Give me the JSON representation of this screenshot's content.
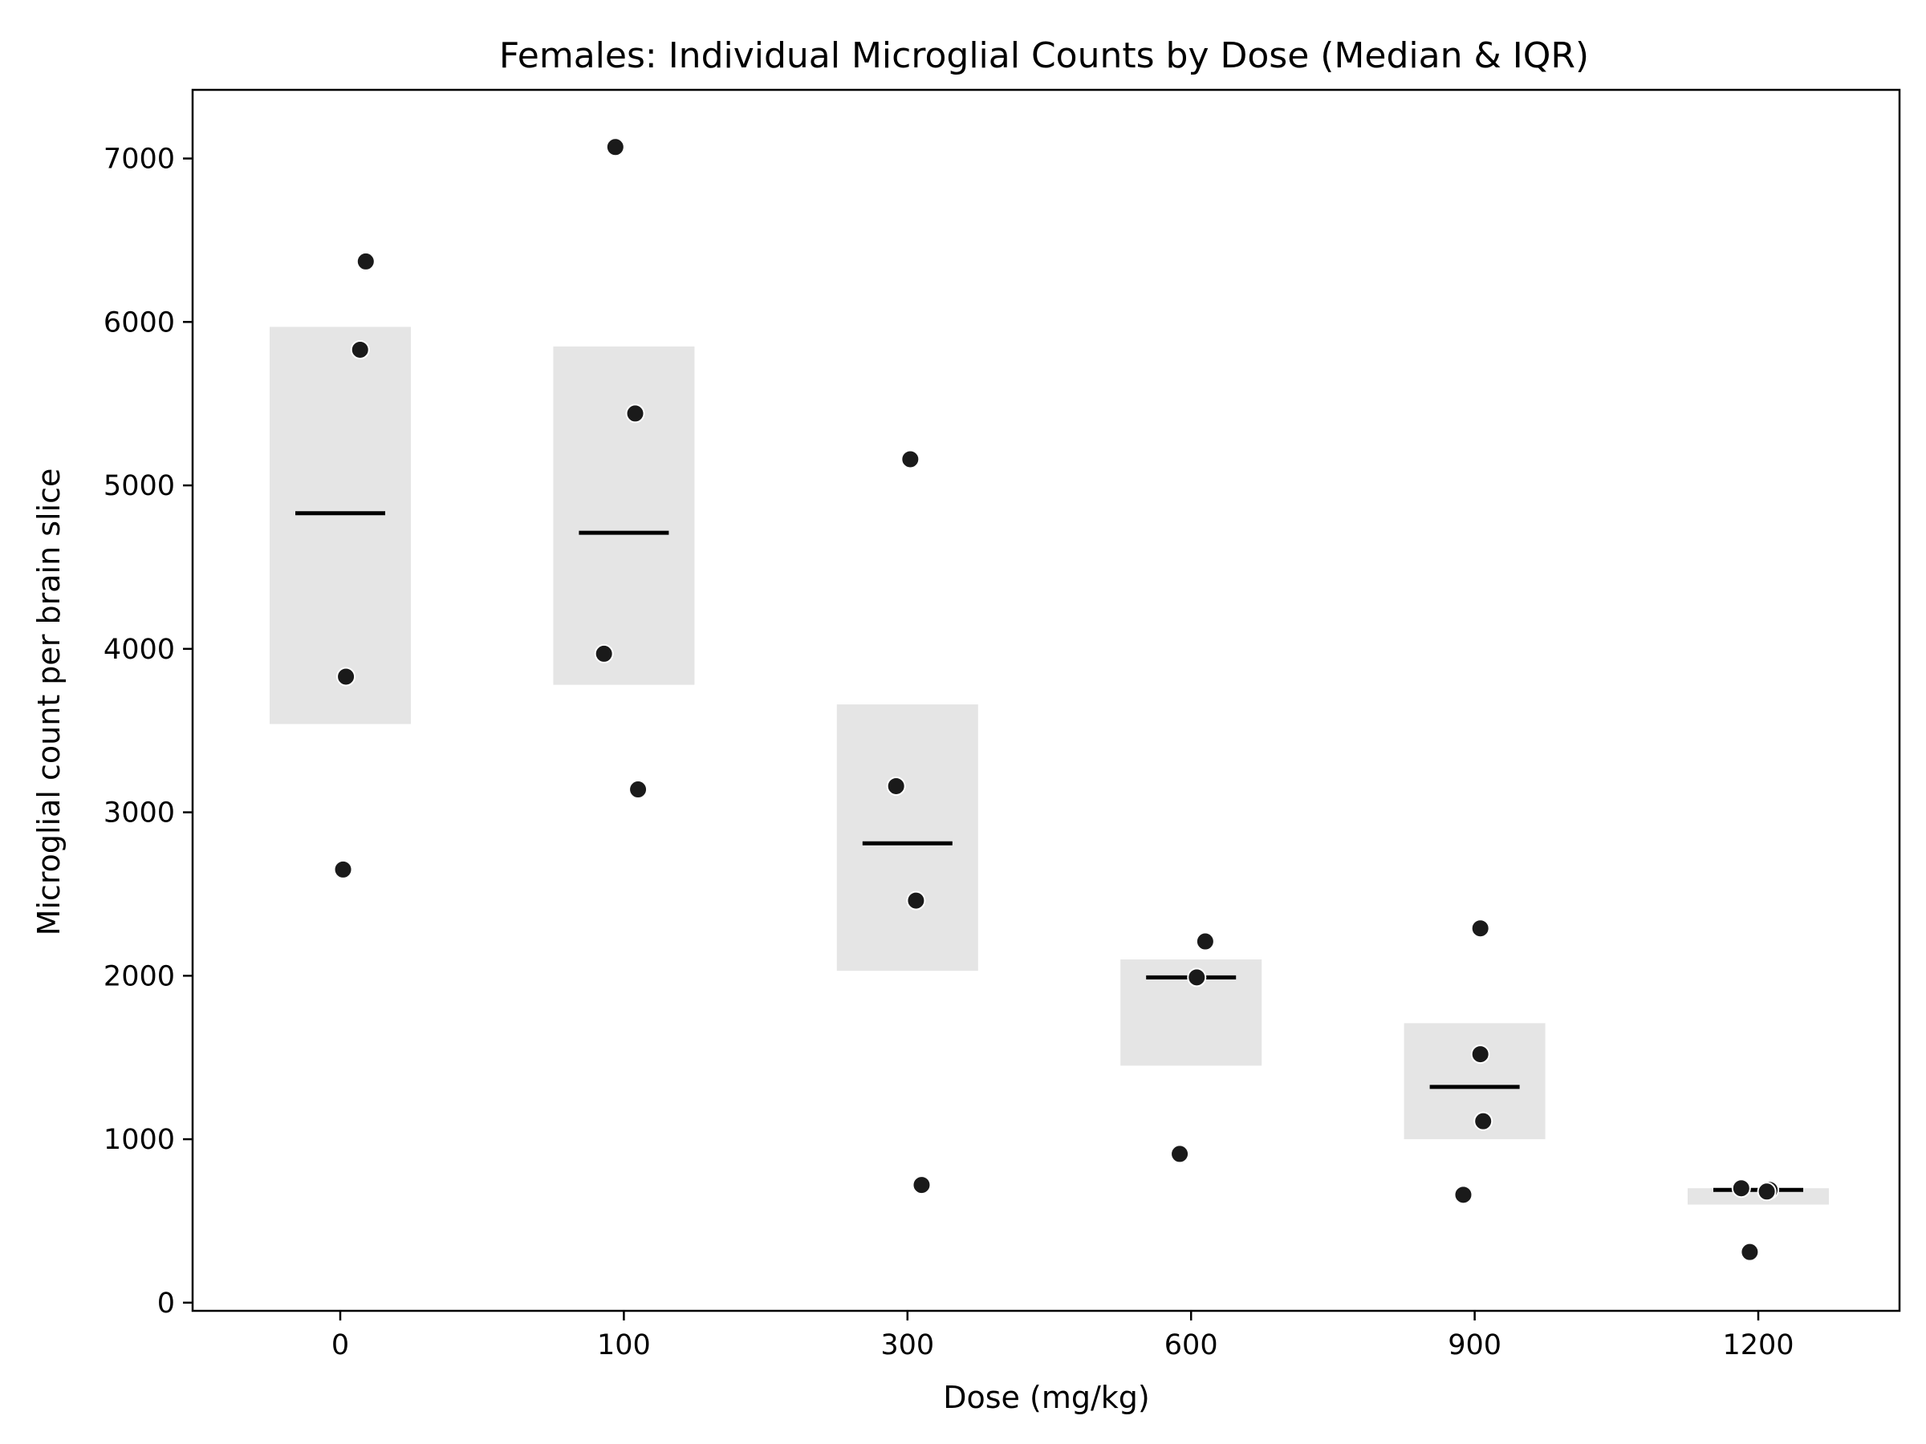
{
  "chart_data": {
    "type": "scatter",
    "title": "Females: Individual Microglial Counts by Dose (Median & IQR)",
    "xlabel": "Dose (mg/kg)",
    "ylabel": "Microglial count per brain slice",
    "categories": [
      "0",
      "100",
      "300",
      "600",
      "900",
      "1200"
    ],
    "ylim": [
      -50,
      7420
    ],
    "yticks": [
      0,
      1000,
      2000,
      3000,
      4000,
      5000,
      6000,
      7000
    ],
    "grid": false,
    "iqr_color": "#e5e5e5",
    "point_color": "#1a1a1a",
    "median_color": "#000000",
    "groups": [
      {
        "dose": "0",
        "q1": 3540,
        "q3": 5970,
        "median": 4830,
        "points": [
          {
            "offset": 0.09,
            "y": 6370
          },
          {
            "offset": 0.07,
            "y": 5830
          },
          {
            "offset": 0.02,
            "y": 3830
          },
          {
            "offset": 0.01,
            "y": 2650
          }
        ]
      },
      {
        "dose": "100",
        "q1": 3780,
        "q3": 5850,
        "median": 4710,
        "points": [
          {
            "offset": -0.03,
            "y": 7070
          },
          {
            "offset": 0.04,
            "y": 5440
          },
          {
            "offset": -0.07,
            "y": 3970
          },
          {
            "offset": 0.05,
            "y": 3140
          }
        ]
      },
      {
        "dose": "300",
        "q1": 2030,
        "q3": 3660,
        "median": 2810,
        "points": [
          {
            "offset": 0.01,
            "y": 5160
          },
          {
            "offset": -0.04,
            "y": 3160
          },
          {
            "offset": 0.03,
            "y": 2460
          },
          {
            "offset": 0.05,
            "y": 720
          }
        ]
      },
      {
        "dose": "600",
        "q1": 1450,
        "q3": 2100,
        "median": 1990,
        "points": [
          {
            "offset": 0.05,
            "y": 2210
          },
          {
            "offset": 0.02,
            "y": 1990
          },
          {
            "offset": -0.04,
            "y": 910
          }
        ]
      },
      {
        "dose": "900",
        "q1": 1000,
        "q3": 1710,
        "median": 1320,
        "points": [
          {
            "offset": 0.02,
            "y": 2290
          },
          {
            "offset": 0.02,
            "y": 1520
          },
          {
            "offset": 0.03,
            "y": 1110
          },
          {
            "offset": -0.04,
            "y": 660
          }
        ]
      },
      {
        "dose": "1200",
        "q1": 600,
        "q3": 700,
        "median": 690,
        "points": [
          {
            "offset": -0.06,
            "y": 700
          },
          {
            "offset": 0.04,
            "y": 690
          },
          {
            "offset": 0.03,
            "y": 680
          },
          {
            "offset": -0.03,
            "y": 310
          }
        ]
      }
    ]
  }
}
